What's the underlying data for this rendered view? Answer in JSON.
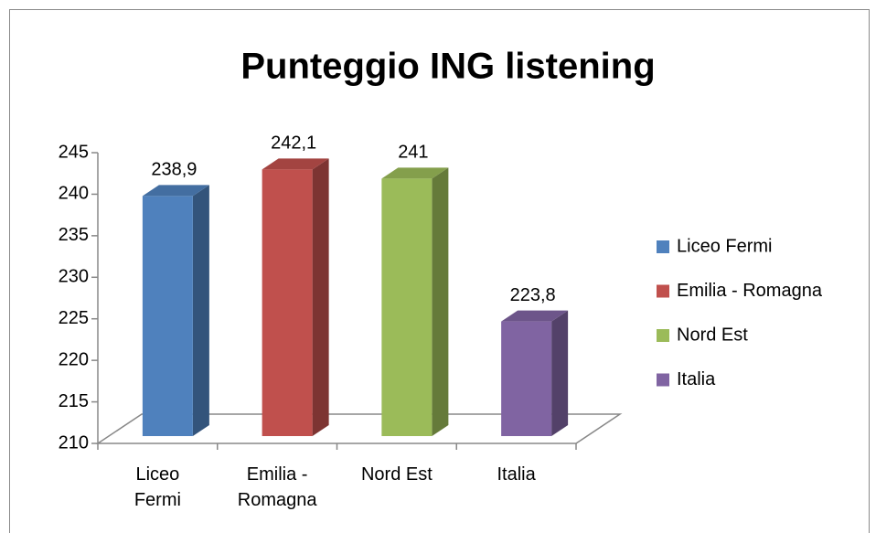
{
  "chart_data": {
    "type": "bar3d",
    "title": "Punteggio ING listening",
    "categories": [
      "Liceo Fermi",
      "Emilia - Romagna",
      "Nord Est",
      "Italia"
    ],
    "values": [
      238.9,
      242.1,
      241,
      223.8
    ],
    "value_labels": [
      "238,9",
      "242,1",
      "241",
      "223,8"
    ],
    "colors": [
      "#4f81bd",
      "#c0504d",
      "#9bbb59",
      "#8064a2"
    ],
    "ylim": [
      210,
      245
    ],
    "yticks": [
      210,
      215,
      220,
      225,
      230,
      235,
      240,
      245
    ],
    "legend": "right"
  }
}
